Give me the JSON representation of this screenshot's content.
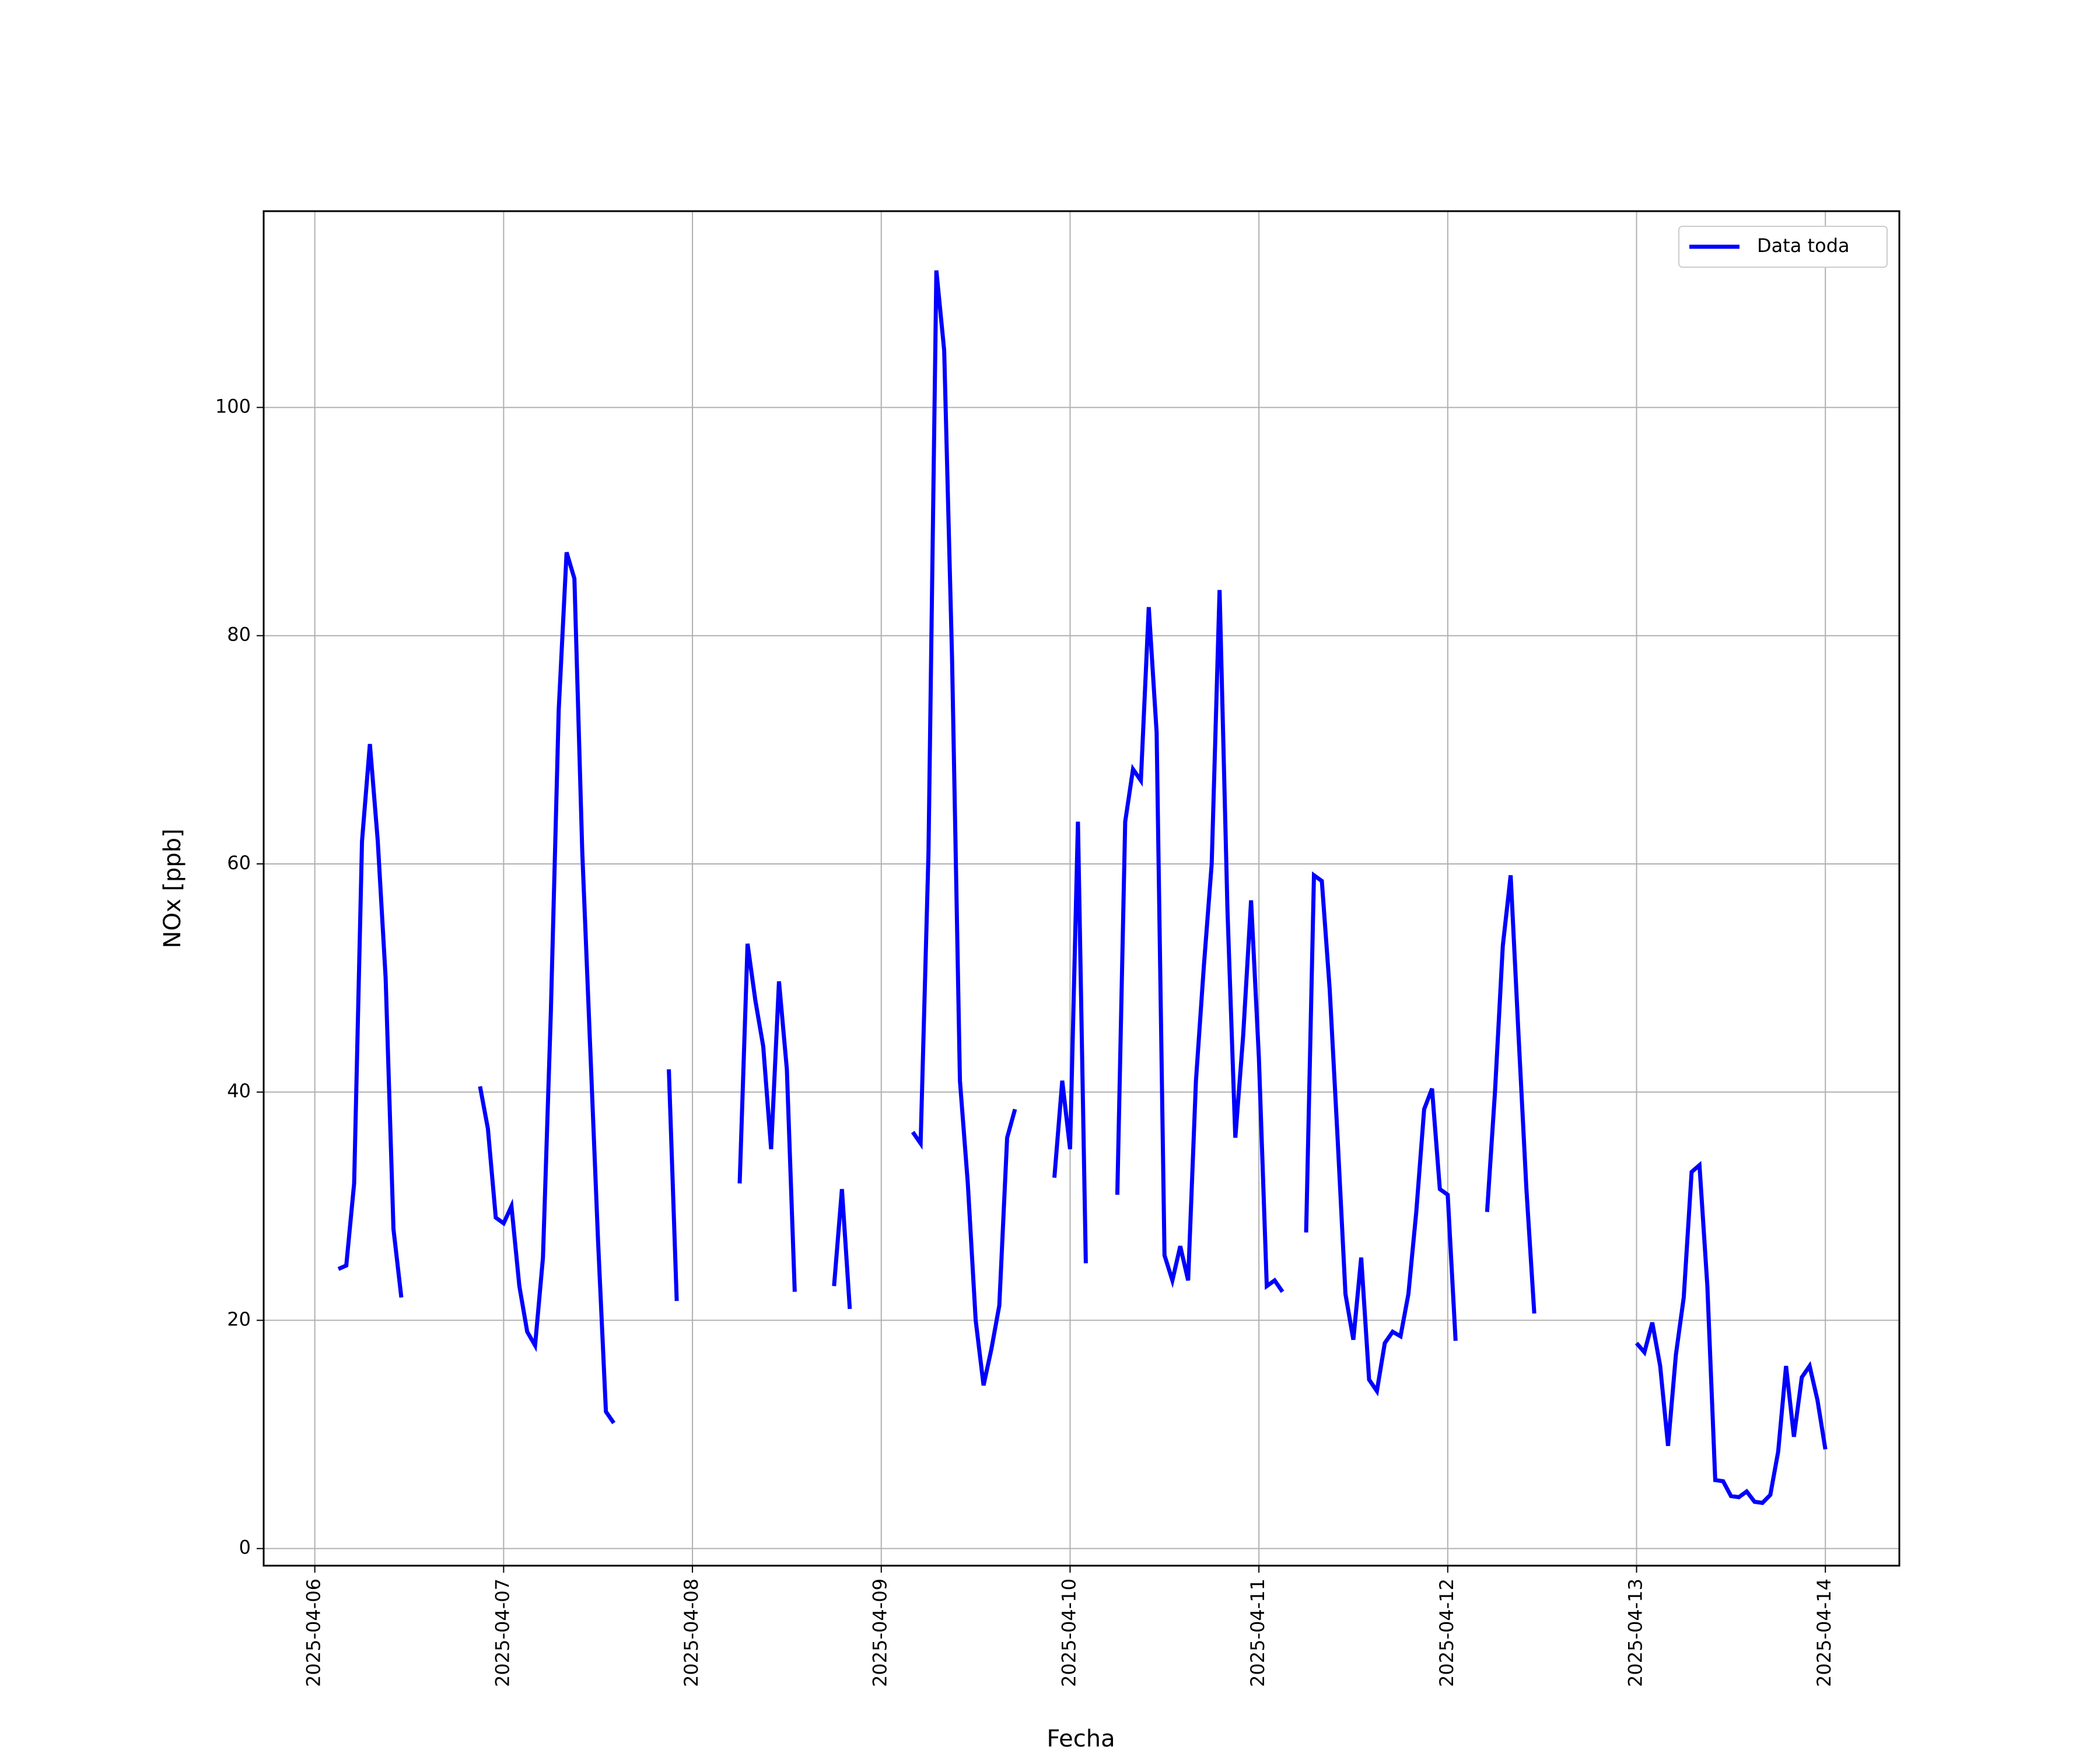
{
  "chart_data": {
    "type": "line",
    "xlabel": "Fecha",
    "ylabel": "NOx [ppb]",
    "x": [
      "2025-04-06 03:00",
      "2025-04-06 04:00",
      "2025-04-06 05:00",
      "2025-04-06 06:00",
      "2025-04-06 07:00",
      "2025-04-06 08:00",
      "2025-04-06 09:00",
      "2025-04-06 10:00",
      "2025-04-06 11:00",
      "2025-04-06 12:00",
      "2025-04-06 21:00",
      "2025-04-06 22:00",
      "2025-04-06 23:00",
      "2025-04-07 00:00",
      "2025-04-07 01:00",
      "2025-04-07 02:00",
      "2025-04-07 03:00",
      "2025-04-07 04:00",
      "2025-04-07 05:00",
      "2025-04-07 06:00",
      "2025-04-07 07:00",
      "2025-04-07 08:00",
      "2025-04-07 09:00",
      "2025-04-07 10:00",
      "2025-04-07 11:00",
      "2025-04-07 12:00",
      "2025-04-07 13:00",
      "2025-04-07 14:00",
      "2025-04-07 15:00",
      "2025-04-07 21:00",
      "2025-04-07 22:00",
      "2025-04-07 23:00",
      "2025-04-08 06:00",
      "2025-04-08 07:00",
      "2025-04-08 08:00",
      "2025-04-08 09:00",
      "2025-04-08 10:00",
      "2025-04-08 11:00",
      "2025-04-08 12:00",
      "2025-04-08 13:00",
      "2025-04-08 14:00",
      "2025-04-08 18:00",
      "2025-04-08 19:00",
      "2025-04-08 20:00",
      "2025-04-08 21:00",
      "2025-04-09 04:00",
      "2025-04-09 05:00",
      "2025-04-09 06:00",
      "2025-04-09 07:00",
      "2025-04-09 08:00",
      "2025-04-09 09:00",
      "2025-04-09 10:00",
      "2025-04-09 11:00",
      "2025-04-09 12:00",
      "2025-04-09 13:00",
      "2025-04-09 14:00",
      "2025-04-09 15:00",
      "2025-04-09 16:00",
      "2025-04-09 17:00",
      "2025-04-09 18:00",
      "2025-04-09 22:00",
      "2025-04-09 23:00",
      "2025-04-10 00:00",
      "2025-04-10 01:00",
      "2025-04-10 02:00",
      "2025-04-10 03:00",
      "2025-04-10 06:00",
      "2025-04-10 07:00",
      "2025-04-10 08:00",
      "2025-04-10 09:00",
      "2025-04-10 10:00",
      "2025-04-10 11:00",
      "2025-04-10 12:00",
      "2025-04-10 13:00",
      "2025-04-10 14:00",
      "2025-04-10 15:00",
      "2025-04-10 16:00",
      "2025-04-10 17:00",
      "2025-04-10 18:00",
      "2025-04-10 19:00",
      "2025-04-10 20:00",
      "2025-04-10 21:00",
      "2025-04-10 22:00",
      "2025-04-10 23:00",
      "2025-04-11 00:00",
      "2025-04-11 01:00",
      "2025-04-11 02:00",
      "2025-04-11 03:00",
      "2025-04-11 04:00",
      "2025-04-11 06:00",
      "2025-04-11 07:00",
      "2025-04-11 08:00",
      "2025-04-11 09:00",
      "2025-04-11 10:00",
      "2025-04-11 11:00",
      "2025-04-11 12:00",
      "2025-04-11 13:00",
      "2025-04-11 14:00",
      "2025-04-11 15:00",
      "2025-04-11 16:00",
      "2025-04-11 17:00",
      "2025-04-11 18:00",
      "2025-04-11 19:00",
      "2025-04-11 20:00",
      "2025-04-11 21:00",
      "2025-04-11 22:00",
      "2025-04-11 23:00",
      "2025-04-12 00:00",
      "2025-04-12 01:00",
      "2025-04-12 02:00",
      "2025-04-12 05:00",
      "2025-04-12 06:00",
      "2025-04-12 07:00",
      "2025-04-12 08:00",
      "2025-04-12 09:00",
      "2025-04-12 10:00",
      "2025-04-12 11:00",
      "2025-04-12 12:00",
      "2025-04-13 00:00",
      "2025-04-13 01:00",
      "2025-04-13 02:00",
      "2025-04-13 03:00",
      "2025-04-13 04:00",
      "2025-04-13 05:00",
      "2025-04-13 06:00",
      "2025-04-13 07:00",
      "2025-04-13 08:00",
      "2025-04-13 09:00",
      "2025-04-13 10:00",
      "2025-04-13 11:00",
      "2025-04-13 12:00",
      "2025-04-13 13:00",
      "2025-04-13 14:00",
      "2025-04-13 15:00",
      "2025-04-13 16:00",
      "2025-04-13 17:00",
      "2025-04-13 18:00",
      "2025-04-13 19:00",
      "2025-04-13 20:00",
      "2025-04-13 21:00",
      "2025-04-13 22:00",
      "2025-04-13 23:00",
      "2025-04-14 00:00"
    ],
    "series": [
      {
        "name": "Data toda",
        "color": "#0000ff",
        "values": [
          24.5,
          24.8,
          32,
          62,
          70.5,
          62,
          50,
          28,
          22,
          null,
          40.5,
          36.8,
          29,
          28.5,
          30,
          23,
          19,
          17.8,
          25.5,
          47,
          73.5,
          87.3,
          85,
          61,
          44,
          27,
          12,
          11,
          null,
          42,
          21.7,
          null,
          32,
          53,
          48,
          44,
          35,
          49.7,
          42,
          22.5,
          null,
          23,
          31.5,
          21,
          null,
          36.5,
          35.5,
          61,
          112,
          105,
          78,
          41,
          32,
          20,
          14.3,
          17.5,
          21.3,
          36,
          38.5,
          null,
          32.5,
          41,
          35,
          63.7,
          25,
          null,
          31,
          63.7,
          68.3,
          67.3,
          82.5,
          71.5,
          25.7,
          23.5,
          26.5,
          23.5,
          41,
          51,
          60,
          84,
          56,
          36,
          45,
          56.8,
          43,
          23,
          23.5,
          22.5,
          null,
          27.7,
          59,
          58.5,
          49,
          36,
          22.3,
          18.3,
          25.5,
          14.8,
          13.8,
          18,
          19,
          18.6,
          22.3,
          29.5,
          38.5,
          40.3,
          31.5,
          31,
          18.2,
          null,
          29.5,
          40,
          52.8,
          59,
          45,
          31.5,
          20.6,
          null,
          18,
          17.2,
          19.8,
          16,
          9,
          17,
          22,
          33,
          33.6,
          23,
          6,
          5.9,
          4.6,
          4.5,
          5,
          4.1,
          4,
          4.7,
          8.5,
          16,
          9.8,
          15,
          16,
          13,
          8.7
        ]
      }
    ],
    "xlim": [
      "2025-04-05 17:30",
      "2025-04-14 09:24"
    ],
    "xticks": [
      "2025-04-06",
      "2025-04-07",
      "2025-04-08",
      "2025-04-09",
      "2025-04-10",
      "2025-04-11",
      "2025-04-12",
      "2025-04-13",
      "2025-04-14"
    ],
    "ylim": [
      -1.5,
      117.2
    ],
    "yticks": [
      0,
      20,
      40,
      60,
      80,
      100
    ],
    "grid": true,
    "legend": "upper right"
  }
}
